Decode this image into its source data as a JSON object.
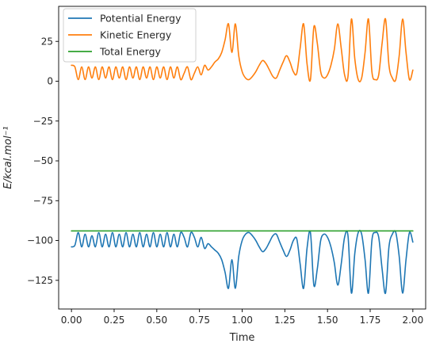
{
  "chart_data": {
    "type": "line",
    "title": "",
    "xlabel": "Time",
    "ylabel": "E/kcal.mol⁻¹",
    "xlim": [
      -0.075,
      2.075
    ],
    "ylim": [
      -143,
      47
    ],
    "xticks": [
      0.0,
      0.25,
      0.5,
      0.75,
      1.0,
      1.25,
      1.5,
      1.75,
      2.0
    ],
    "xtick_labels": [
      "0.00",
      "0.25",
      "0.50",
      "0.75",
      "1.00",
      "1.25",
      "1.50",
      "1.75",
      "2.00"
    ],
    "yticks": [
      25,
      0,
      -25,
      -50,
      -75,
      -100,
      -125
    ],
    "ytick_labels": [
      "25",
      "0",
      "−25",
      "−50",
      "−75",
      "−100",
      "−125"
    ],
    "grid": false,
    "legend_position": "upper-left",
    "series": [
      {
        "name": "Potential Energy",
        "color": "#1f77b4",
        "x": [
          0.0,
          0.02,
          0.04,
          0.06,
          0.08,
          0.1,
          0.12,
          0.14,
          0.16,
          0.18,
          0.2,
          0.22,
          0.24,
          0.26,
          0.28,
          0.3,
          0.32,
          0.34,
          0.36,
          0.38,
          0.4,
          0.42,
          0.44,
          0.46,
          0.48,
          0.5,
          0.52,
          0.54,
          0.56,
          0.58,
          0.6,
          0.62,
          0.64,
          0.66,
          0.68,
          0.7,
          0.72,
          0.74,
          0.76,
          0.78,
          0.8,
          0.82,
          0.84,
          0.86,
          0.88,
          0.9,
          0.92,
          0.94,
          0.96,
          0.98,
          1.0,
          1.02,
          1.04,
          1.06,
          1.08,
          1.1,
          1.12,
          1.14,
          1.16,
          1.18,
          1.2,
          1.22,
          1.24,
          1.26,
          1.28,
          1.3,
          1.32,
          1.34,
          1.36,
          1.38,
          1.4,
          1.42,
          1.44,
          1.46,
          1.48,
          1.5,
          1.52,
          1.54,
          1.56,
          1.58,
          1.6,
          1.62,
          1.64,
          1.66,
          1.68,
          1.7,
          1.72,
          1.74,
          1.76,
          1.78,
          1.8,
          1.82,
          1.84,
          1.86,
          1.88,
          1.9,
          1.92,
          1.94,
          1.96,
          1.98,
          2.0
        ],
        "y": [
          -104,
          -103,
          -95,
          -104,
          -96,
          -104,
          -97,
          -104,
          -95,
          -104,
          -96,
          -104,
          -95,
          -104,
          -96,
          -104,
          -95,
          -104,
          -96,
          -104,
          -95,
          -104,
          -96,
          -104,
          -95,
          -104,
          -96,
          -104,
          -95,
          -104,
          -96,
          -104,
          -95,
          -98,
          -104,
          -95,
          -98,
          -104,
          -98,
          -105,
          -102,
          -104,
          -106,
          -108,
          -112,
          -120,
          -130,
          -112,
          -130,
          -110,
          -100,
          -96,
          -95,
          -97,
          -100,
          -104,
          -107,
          -105,
          -101,
          -97,
          -96,
          -101,
          -106,
          -110,
          -106,
          -100,
          -99,
          -115,
          -130,
          -105,
          -95,
          -128,
          -118,
          -100,
          -96,
          -98,
          -104,
          -114,
          -128,
          -115,
          -98,
          -97,
          -133,
          -108,
          -95,
          -96,
          -112,
          -133,
          -100,
          -95,
          -98,
          -118,
          -133,
          -104,
          -96,
          -95,
          -110,
          -133,
          -112,
          -95,
          -101
        ]
      },
      {
        "name": "Kinetic Energy",
        "color": "#ff7f0e",
        "x": [
          0.0,
          0.02,
          0.04,
          0.06,
          0.08,
          0.1,
          0.12,
          0.14,
          0.16,
          0.18,
          0.2,
          0.22,
          0.24,
          0.26,
          0.28,
          0.3,
          0.32,
          0.34,
          0.36,
          0.38,
          0.4,
          0.42,
          0.44,
          0.46,
          0.48,
          0.5,
          0.52,
          0.54,
          0.56,
          0.58,
          0.6,
          0.62,
          0.64,
          0.66,
          0.68,
          0.7,
          0.72,
          0.74,
          0.76,
          0.78,
          0.8,
          0.82,
          0.84,
          0.86,
          0.88,
          0.9,
          0.92,
          0.94,
          0.96,
          0.98,
          1.0,
          1.02,
          1.04,
          1.06,
          1.08,
          1.1,
          1.12,
          1.14,
          1.16,
          1.18,
          1.2,
          1.22,
          1.24,
          1.26,
          1.28,
          1.3,
          1.32,
          1.34,
          1.36,
          1.38,
          1.4,
          1.42,
          1.44,
          1.46,
          1.48,
          1.5,
          1.52,
          1.54,
          1.56,
          1.58,
          1.6,
          1.62,
          1.64,
          1.66,
          1.68,
          1.7,
          1.72,
          1.74,
          1.76,
          1.78,
          1.8,
          1.82,
          1.84,
          1.86,
          1.88,
          1.9,
          1.92,
          1.94,
          1.96,
          1.98,
          2.0
        ],
        "y": [
          10,
          9,
          1,
          9,
          1,
          9,
          2,
          9,
          1,
          9,
          2,
          9,
          1,
          9,
          2,
          9,
          1,
          9,
          2,
          9,
          1,
          9,
          2,
          9,
          1,
          9,
          2,
          9,
          1,
          9,
          2,
          9,
          1,
          5,
          9,
          1,
          5,
          9,
          4,
          10,
          7,
          9,
          12,
          14,
          18,
          26,
          36,
          18,
          36,
          16,
          6,
          2,
          1,
          3,
          6,
          10,
          13,
          11,
          7,
          3,
          2,
          7,
          12,
          16,
          12,
          6,
          5,
          21,
          36,
          11,
          1,
          34,
          24,
          6,
          2,
          4,
          10,
          20,
          36,
          21,
          4,
          3,
          39,
          14,
          1,
          2,
          18,
          39,
          6,
          1,
          4,
          24,
          39,
          10,
          2,
          1,
          16,
          39,
          18,
          1,
          7
        ]
      },
      {
        "name": "Total Energy",
        "color": "#2ca02c",
        "x": [
          0.0,
          0.25,
          0.5,
          0.75,
          1.0,
          1.25,
          1.5,
          1.75,
          2.0
        ],
        "y": [
          -94,
          -94,
          -94,
          -94,
          -94,
          -94,
          -94,
          -94,
          -94
        ]
      }
    ]
  }
}
